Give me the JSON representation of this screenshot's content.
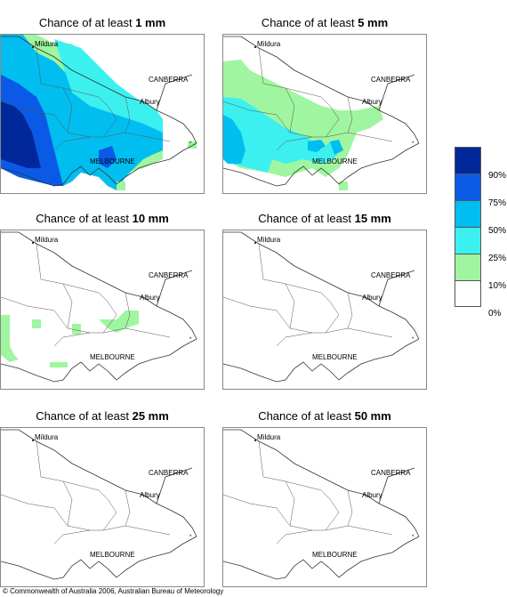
{
  "panels": [
    {
      "prefix": "Chance of at least ",
      "amount": "1 mm"
    },
    {
      "prefix": "Chance of at least ",
      "amount": "5 mm"
    },
    {
      "prefix": "Chance of at least ",
      "amount": "10 mm"
    },
    {
      "prefix": "Chance of at least ",
      "amount": "15 mm"
    },
    {
      "prefix": "Chance of at least ",
      "amount": "25 mm"
    },
    {
      "prefix": "Chance of at least ",
      "amount": "50 mm"
    }
  ],
  "places": {
    "mildura": "Mildura",
    "canberra": "CANBERRA",
    "albury": "Albury",
    "melbourne": "MELBOURNE"
  },
  "legend": {
    "colors": [
      "#00289a",
      "#0a5ae6",
      "#00bef0",
      "#3cf0f0",
      "#a0f5a0",
      "#ffffff"
    ],
    "labels": [
      "90%",
      "75%",
      "50%",
      "25%",
      "10%",
      "0%"
    ]
  },
  "copyright": "© Commonwealth of Australia 2006, Australian Bureau of Meteorology"
}
